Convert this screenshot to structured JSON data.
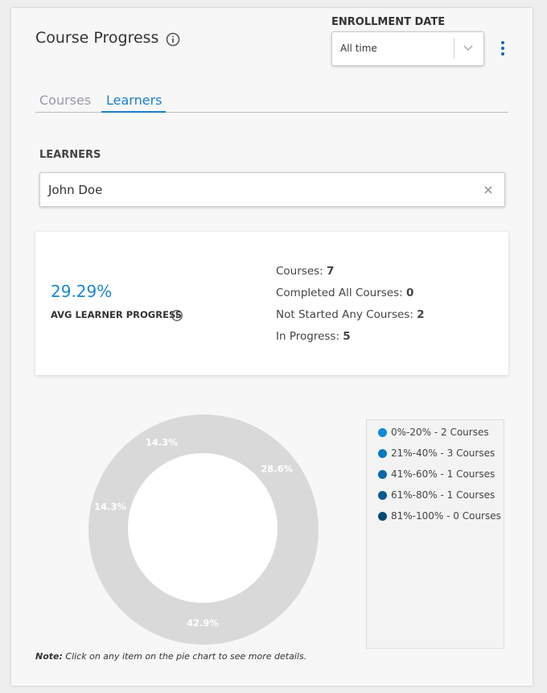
{
  "header": {
    "title": "Course Progress",
    "filter_label": "ENROLLMENT DATE",
    "filter_value": "All time"
  },
  "tabs": [
    "Courses",
    "Learners"
  ],
  "learners": {
    "label": "LEARNERS",
    "value": "John Doe"
  },
  "summary": {
    "avg_progress": "29.29%",
    "avg_label": "AVG LEARNER PROGRESS",
    "stats": [
      {
        "label": "Courses:",
        "value": 7
      },
      {
        "label": "Completed All Courses:",
        "value": 0
      },
      {
        "label": "Not Started Any Courses:",
        "value": 2
      },
      {
        "label": "In Progress:",
        "value": 5
      }
    ]
  },
  "chart_data": {
    "type": "pie",
    "categories": [
      "0%-20% - 2 Courses",
      "21%-40% - 3 Courses",
      "41%-60% - 1 Courses",
      "61%-80% - 1 Courses",
      "81%-100% - 0 Courses"
    ],
    "values": [
      28.6,
      42.9,
      14.3,
      14.3,
      0
    ],
    "value_labels": [
      "28.6%",
      "42.9%",
      "14.3%",
      "14.3%",
      null
    ],
    "colors": [
      "#0a8ad9",
      "#0679c2",
      "#0669aa",
      "#055a90",
      "#044a75"
    ]
  },
  "note": {
    "label": "Note:",
    "text": "Click on any item on the pie chart to see more details."
  }
}
